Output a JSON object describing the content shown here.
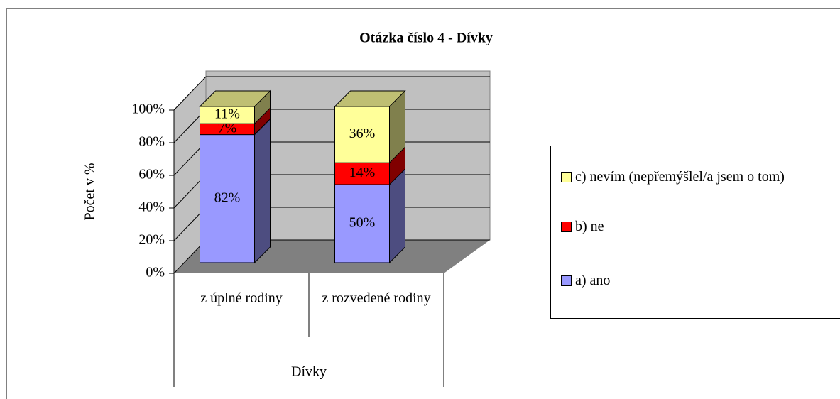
{
  "chart_data": {
    "type": "bar3d_stacked",
    "title": "Otázka číslo 4 - Dívky",
    "y_label": "Počet v %",
    "categories": [
      "z úplné rodiny",
      "z rozvedené rodiny"
    ],
    "group_label": "Dívky",
    "series": [
      {
        "name": "a) ano",
        "color": "#9999ff",
        "values": [
          82,
          50
        ],
        "value_labels": [
          "82%",
          "50%"
        ]
      },
      {
        "name": "b) ne",
        "color": "#ff0000",
        "values": [
          7,
          14
        ],
        "value_labels": [
          "7%",
          "14%"
        ]
      },
      {
        "name": "c) nevím (nepřemýšlel/a jsem o tom)",
        "color": "#ffff99",
        "values": [
          11,
          36
        ],
        "value_labels": [
          "11%",
          "36%"
        ]
      }
    ],
    "ylim": [
      0,
      100
    ],
    "yticks": [
      {
        "value": 0,
        "label": "0%"
      },
      {
        "value": 20,
        "label": "20%"
      },
      {
        "value": 40,
        "label": "40%"
      },
      {
        "value": 60,
        "label": "60%"
      },
      {
        "value": 80,
        "label": "80%"
      },
      {
        "value": 100,
        "label": "100%"
      }
    ],
    "grid": true,
    "legend": "right"
  }
}
